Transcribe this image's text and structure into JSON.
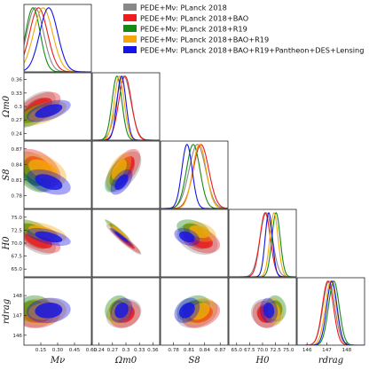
{
  "chart_data": {
    "type": "corner-plot",
    "params": [
      {
        "key": "Mnu",
        "label": "Mν",
        "range": [
          0.0,
          0.6
        ],
        "ticks": [
          0.15,
          0.3,
          0.45,
          0.6
        ],
        "tick_labels": [
          "0.15",
          "0.30",
          "0.45",
          "0.60"
        ]
      },
      {
        "key": "Om",
        "label": "Ωm0",
        "range": [
          0.225,
          0.375
        ],
        "ticks": [
          0.24,
          0.27,
          0.3,
          0.33,
          0.36
        ],
        "tick_labels": [
          "0.24",
          "0.27",
          "0.3",
          "0.33",
          "0.36"
        ]
      },
      {
        "key": "S8",
        "label": "S8",
        "range": [
          0.755,
          0.885
        ],
        "ticks": [
          0.78,
          0.81,
          0.84,
          0.87
        ],
        "tick_labels": [
          "0.78",
          "0.81",
          "0.84",
          "0.87"
        ]
      },
      {
        "key": "H0",
        "label": "H0",
        "range": [
          63.5,
          76.5
        ],
        "ticks": [
          65.0,
          67.5,
          70.0,
          72.5,
          75.0
        ],
        "tick_labels": [
          "65.0",
          "67.5",
          "70.0",
          "72.5",
          "75.0"
        ]
      },
      {
        "key": "rd",
        "label": "rdrag",
        "range": [
          145.5,
          148.9
        ],
        "ticks": [
          146,
          147,
          148
        ],
        "tick_labels": [
          "146",
          "147",
          "148"
        ]
      }
    ],
    "series": [
      {
        "name": "PEDE+Mν: PLanck 2018",
        "color": "#888888",
        "mean": {
          "Mnu": 0.1,
          "Om": 0.295,
          "S8": 0.826,
          "H0": 70.7,
          "rd": 147.1
        },
        "sd": {
          "Mnu": 0.075,
          "Om": 0.016,
          "S8": 0.016,
          "H0": 1.2,
          "rd": 0.3
        },
        "corr": {
          "Om-Mnu": 0.55,
          "S8-Mnu": -0.45,
          "S8-Om": 0.55,
          "H0-Mnu": -0.55,
          "H0-Om": -0.95,
          "H0-S8": -0.35,
          "rd-Mnu": 0.1,
          "rd-Om": 0.2,
          "rd-S8": 0.3,
          "rd-H0": -0.1
        }
      },
      {
        "name": "PEDE+Mν: PLanck 2018+BAO",
        "color": "#ee1c1c",
        "mean": {
          "Mnu": 0.13,
          "Om": 0.298,
          "S8": 0.833,
          "H0": 70.5,
          "rd": 147.05
        },
        "sd": {
          "Mnu": 0.08,
          "Om": 0.014,
          "S8": 0.015,
          "H0": 1.0,
          "rd": 0.28
        },
        "corr": {
          "Om-Mnu": 0.55,
          "S8-Mnu": -0.45,
          "S8-Om": 0.55,
          "H0-Mnu": -0.55,
          "H0-Om": -0.95,
          "H0-S8": -0.35,
          "rd-Mnu": 0.1,
          "rd-Om": 0.2,
          "rd-S8": 0.3,
          "rd-H0": -0.1
        }
      },
      {
        "name": "PEDE+Mν: PLanck 2018+R19",
        "color": "#138a13",
        "mean": {
          "Mnu": 0.08,
          "Om": 0.28,
          "S8": 0.818,
          "H0": 72.6,
          "rd": 147.35
        },
        "sd": {
          "Mnu": 0.065,
          "Om": 0.011,
          "S8": 0.013,
          "H0": 0.8,
          "rd": 0.27
        },
        "corr": {
          "Om-Mnu": 0.55,
          "S8-Mnu": -0.45,
          "S8-Om": 0.55,
          "H0-Mnu": -0.55,
          "H0-Om": -0.95,
          "H0-S8": -0.35,
          "rd-Mnu": 0.1,
          "rd-Om": 0.2,
          "rd-S8": 0.3,
          "rd-H0": -0.1
        }
      },
      {
        "name": "PEDE+Mν: PLanck 2018+BAO+R19",
        "color": "#f5a70a",
        "mean": {
          "Mnu": 0.17,
          "Om": 0.285,
          "S8": 0.83,
          "H0": 72.2,
          "rd": 147.2
        },
        "sd": {
          "Mnu": 0.085,
          "Om": 0.011,
          "S8": 0.013,
          "H0": 0.8,
          "rd": 0.28
        },
        "corr": {
          "Om-Mnu": 0.55,
          "S8-Mnu": -0.45,
          "S8-Om": 0.55,
          "H0-Mnu": -0.55,
          "H0-Om": -0.95,
          "H0-S8": -0.35,
          "rd-Mnu": 0.1,
          "rd-Om": 0.2,
          "rd-S8": 0.3,
          "rd-H0": -0.1
        }
      },
      {
        "name": "PEDE+Mν: PLanck 2018+BAO+R19+Pantheon+DES+Lensing",
        "color": "#1414e6",
        "mean": {
          "Mnu": 0.22,
          "Om": 0.29,
          "S8": 0.806,
          "H0": 71.2,
          "rd": 147.25
        },
        "sd": {
          "Mnu": 0.08,
          "Om": 0.01,
          "S8": 0.01,
          "H0": 0.7,
          "rd": 0.26
        },
        "corr": {
          "Om-Mnu": 0.55,
          "S8-Mnu": -0.45,
          "S8-Om": 0.55,
          "H0-Mnu": -0.55,
          "H0-Om": -0.95,
          "H0-S8": -0.35,
          "rd-Mnu": 0.1,
          "rd-Om": 0.2,
          "rd-S8": 0.3,
          "rd-H0": -0.1
        }
      }
    ],
    "legend_placement": "top-right",
    "grid": false
  }
}
